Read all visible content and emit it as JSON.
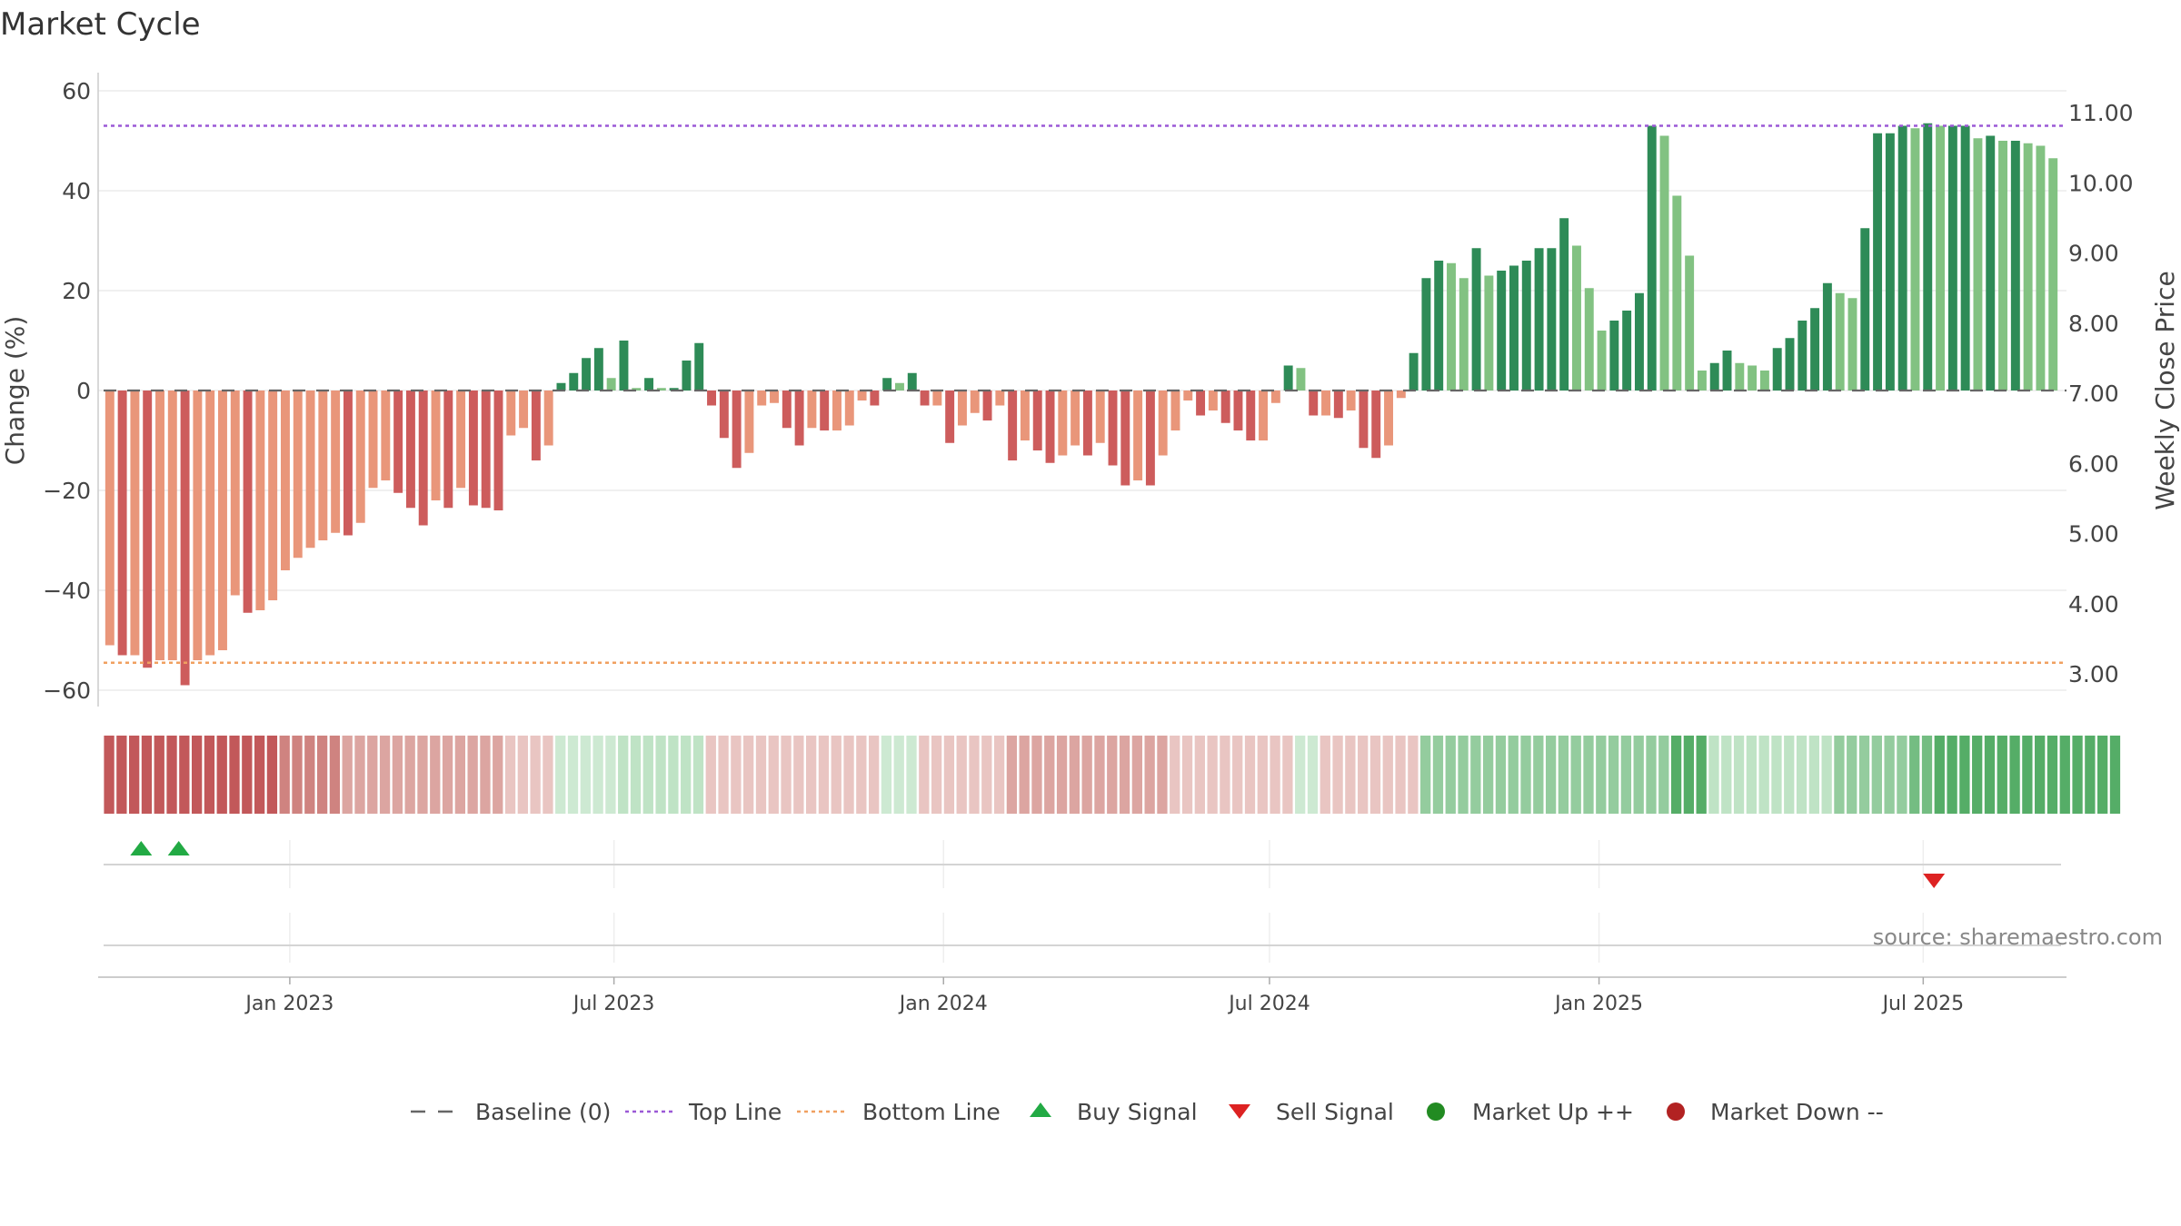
{
  "chart_data": {
    "type": "bar",
    "title": "Market Cycle",
    "ylabel_left": "Change (%)",
    "ylabel_right": "Weekly Close Price",
    "source": "source: sharemaestro.com",
    "y_left_range": [
      -60,
      60
    ],
    "y_left_ticks": [
      "60",
      "40",
      "20",
      "0",
      "−20",
      "−40",
      "−60"
    ],
    "y_left_tick_values": [
      60,
      40,
      20,
      0,
      -20,
      -40,
      -60
    ],
    "y_right_ticks": [
      "11.00",
      "10.00",
      "9.00",
      "8.00",
      "7.00",
      "6.00",
      "5.00",
      "4.00",
      "3.00"
    ],
    "y_right_tick_values": [
      11,
      10,
      9,
      8,
      7,
      6,
      5,
      4,
      3
    ],
    "x_ticks": [
      "Jan 2023",
      "Jul 2023",
      "Jan 2024",
      "Jul 2024",
      "Jan 2025",
      "Jul 2025"
    ],
    "x_tick_dates": [
      "2023-01-01",
      "2023-07-01",
      "2024-01-01",
      "2024-07-01",
      "2025-01-01",
      "2025-07-01"
    ],
    "x_range": [
      "2022-09-16",
      "2025-09-19"
    ],
    "first_week": "2022-09-19",
    "top_line": 53,
    "bottom_line": -54.5,
    "grid": true,
    "legend_position": "bottom",
    "values": [
      -51,
      -53,
      -53,
      -55.5,
      -54,
      -54,
      -59,
      -54,
      -53,
      -52,
      -41,
      -44.5,
      -44,
      -42,
      -36,
      -33.5,
      -31.5,
      -30,
      -28.5,
      -29,
      -26.5,
      -19.5,
      -18,
      -20.5,
      -23.5,
      -27,
      -22,
      -23.5,
      -19.5,
      -23,
      -23.5,
      -24,
      -9,
      -7.5,
      -14,
      -11,
      1.5,
      3.5,
      6.5,
      8.5,
      2.5,
      10,
      0.5,
      2.5,
      0.5,
      0.5,
      6,
      9.5,
      -3,
      -9.5,
      -15.5,
      -12.5,
      -3,
      -2.5,
      -7.5,
      -11,
      -7.5,
      -8,
      -8,
      -7,
      -2,
      -3,
      2.5,
      1.5,
      3.5,
      -3,
      -3,
      -10.5,
      -7,
      -4.5,
      -6,
      -3,
      -14,
      -10,
      -12,
      -14.5,
      -13,
      -11,
      -13,
      -10.5,
      -15,
      -19,
      -18,
      -19,
      -13,
      -8,
      -2,
      -5,
      -4,
      -6.5,
      -8,
      -10,
      -10,
      -2.5,
      5,
      4.5,
      -5,
      -5,
      -5.5,
      -4,
      -11.5,
      -13.5,
      -11,
      -1.5,
      7.5,
      22.5,
      26,
      25.5,
      22.5,
      28.5,
      23,
      24,
      25,
      26,
      28.5,
      28.5,
      34.5,
      29,
      20.5,
      12,
      14,
      16,
      19.5,
      53,
      51,
      39,
      27,
      4,
      5.5,
      8,
      5.5,
      5,
      4,
      8.5,
      10.5,
      14,
      16.5,
      21.5,
      19.5,
      18.5,
      32.5,
      51.5,
      51.5,
      53,
      52.5,
      53.5,
      53,
      53,
      53,
      50.5,
      51,
      50,
      50,
      49.5,
      49,
      46.5
    ],
    "strip_levels": [
      -5,
      -5,
      -5,
      -5,
      -5,
      -5,
      -5,
      -5,
      -5,
      -5,
      -5,
      -5,
      -5,
      -5,
      -4,
      -4,
      -4,
      -4,
      -4,
      -3,
      -3,
      -3,
      -3,
      -3,
      -3,
      -3,
      -3,
      -3,
      -3,
      -3,
      -3,
      -3,
      -2,
      -2,
      -2,
      -2,
      1,
      1,
      1,
      1,
      1,
      2,
      2,
      2,
      2,
      2,
      2,
      2,
      -2,
      -2,
      -2,
      -2,
      -2,
      -2,
      -2,
      -2,
      -2,
      -2,
      -2,
      -2,
      -2,
      -2,
      1,
      1,
      1,
      -2,
      -2,
      -2,
      -2,
      -2,
      -2,
      -2,
      -3,
      -3,
      -3,
      -3,
      -3,
      -3,
      -3,
      -3,
      -3,
      -3,
      -3,
      -3,
      -3,
      -2,
      -2,
      -2,
      -2,
      -2,
      -2,
      -2,
      -2,
      -2,
      -2,
      1,
      1,
      -2,
      -2,
      -2,
      -2,
      -2,
      -2,
      -2,
      -2,
      3,
      3,
      3,
      3,
      3,
      3,
      3,
      3,
      3,
      3,
      3,
      3,
      3,
      3,
      3,
      3,
      3,
      3,
      3,
      3,
      5,
      5,
      5,
      2,
      2,
      2,
      2,
      2,
      2,
      2,
      2,
      2,
      2,
      3,
      3,
      3,
      3,
      3,
      3,
      4,
      4,
      5,
      5,
      5,
      5,
      5,
      5,
      5,
      5,
      5,
      5,
      5,
      5,
      5,
      5,
      5
    ],
    "buy_signals": [
      "2022-10-10",
      "2022-10-31"
    ],
    "sell_signals": [
      "2025-07-07"
    ],
    "colors": {
      "up_dark": "#2e8b57",
      "up_light": "#82c282",
      "down_dark": "#cd5c5c",
      "down_light": "#e9967a",
      "top_line": "#9b59d6",
      "bottom_line": "#f0a060",
      "baseline": "#666666",
      "buy": "#22aa44",
      "sell": "#dd2222",
      "market_up": "#228b22",
      "market_down": "#b22222"
    }
  },
  "legend": [
    {
      "label": "Baseline (0)",
      "icon": "dash-line"
    },
    {
      "label": "Top Line",
      "icon": "dotted-line-purple"
    },
    {
      "label": "Bottom Line",
      "icon": "dotted-line-orange"
    },
    {
      "label": "Buy Signal",
      "icon": "triangle-up-green"
    },
    {
      "label": "Sell Signal",
      "icon": "triangle-down-red"
    },
    {
      "label": "Market Up ++",
      "icon": "circle-green"
    },
    {
      "label": "Market Down --",
      "icon": "circle-red"
    }
  ]
}
